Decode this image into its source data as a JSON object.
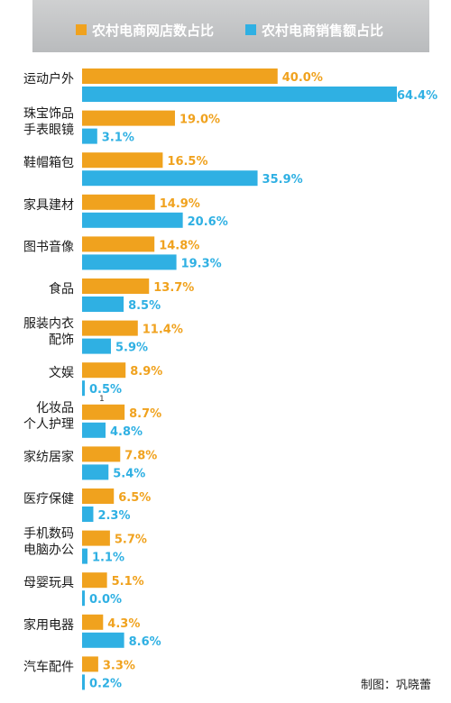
{
  "legend": {
    "series_a": "农村电商网店数占比",
    "series_b": "农村电商销售额占比"
  },
  "colors": {
    "a": "#f0a21e",
    "b": "#2fb0e3"
  },
  "chart_data": {
    "type": "bar",
    "orientation": "horizontal",
    "categories": [
      [
        "运动户外"
      ],
      [
        "珠宝饰品",
        "手表眼镜"
      ],
      [
        "鞋帽箱包"
      ],
      [
        "家具建材"
      ],
      [
        "图书音像"
      ],
      [
        "食品"
      ],
      [
        "服装内衣",
        "配饰"
      ],
      [
        "文娱"
      ],
      [
        "化妆品",
        "个人护理"
      ],
      [
        "家纺居家"
      ],
      [
        "医疗保健"
      ],
      [
        "手机数码",
        "电脑办公"
      ],
      [
        "母婴玩具"
      ],
      [
        "家用电器"
      ],
      [
        "汽车配件"
      ]
    ],
    "series": [
      {
        "name": "农村电商网店数占比",
        "values": [
          40.0,
          19.0,
          16.5,
          14.9,
          14.8,
          13.7,
          11.4,
          8.9,
          8.7,
          7.8,
          6.5,
          5.7,
          5.1,
          4.3,
          3.3
        ]
      },
      {
        "name": "农村电商销售额占比",
        "values": [
          64.4,
          3.1,
          35.9,
          20.6,
          19.3,
          8.5,
          5.9,
          0.5,
          4.8,
          5.4,
          2.3,
          1.1,
          0.0,
          8.6,
          0.2
        ]
      }
    ],
    "value_suffix": "%",
    "xlim": [
      0,
      64.4
    ],
    "legend_position": "top",
    "grid": false
  },
  "note": "1",
  "credit": "制图：巩晓蕾"
}
